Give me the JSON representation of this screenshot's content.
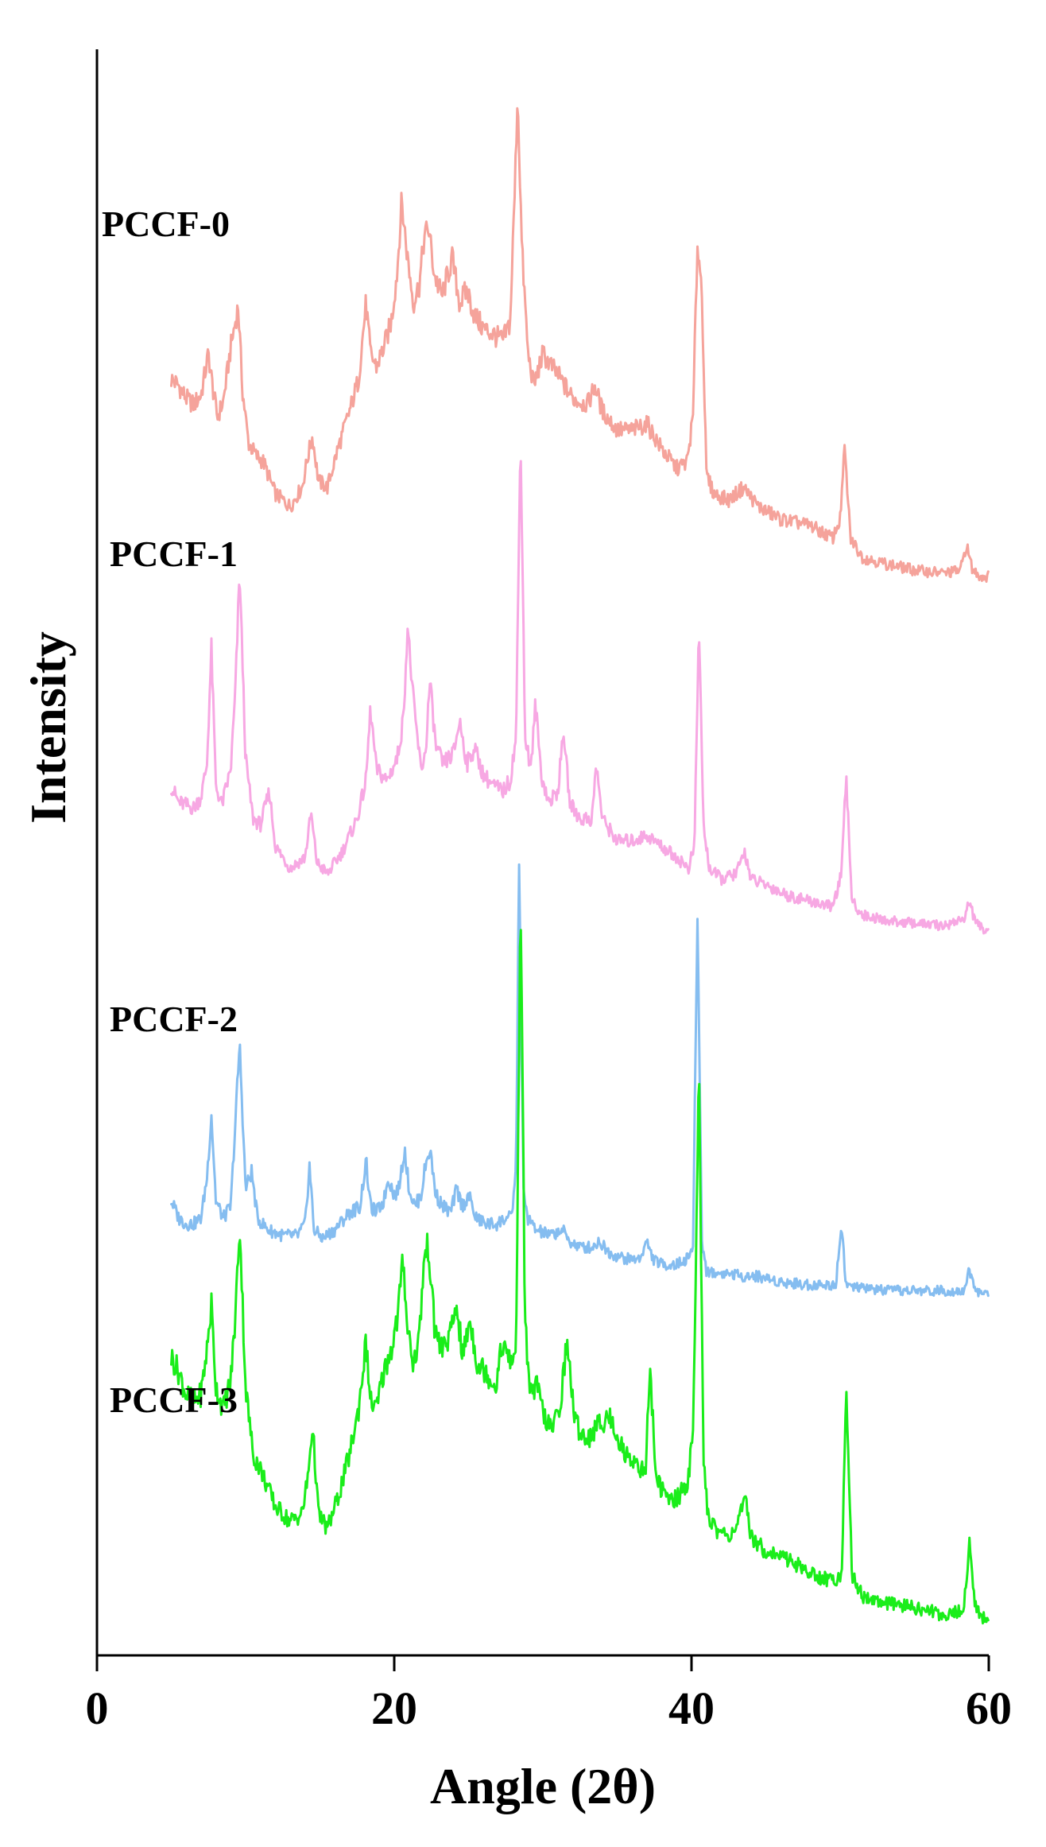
{
  "chart_data": {
    "type": "line",
    "title": "",
    "xlabel": "Angle (2θ)",
    "ylabel": "Intensity",
    "xlim": [
      0,
      60
    ],
    "xticks": [
      "0",
      "20",
      "40",
      "60"
    ],
    "y_ticks_shown": false,
    "grid": false,
    "legend": "inline labels, left",
    "series": [
      {
        "name": "PCCF-0",
        "color": "#f5a39b",
        "x": [
          5,
          5.5,
          6,
          6.5,
          7,
          7.5,
          7.8,
          8.1,
          8.5,
          9,
          9.5,
          9.8,
          10.2,
          10.7,
          11.2,
          12,
          13,
          13.8,
          14.2,
          14.5,
          14.9,
          15.5,
          16.2,
          17,
          17.6,
          18.1,
          18.4,
          18.8,
          19.3,
          19.8,
          20.2,
          20.5,
          20.9,
          21.3,
          21.7,
          22,
          22.3,
          22.7,
          23.2,
          23.9,
          24.4,
          24.9,
          25.4,
          26,
          26.7,
          27.3,
          27.8,
          28.1,
          28.3,
          28.6,
          29,
          29.4,
          30,
          30.6,
          31.2,
          32,
          33,
          33.5,
          34,
          35,
          36,
          37,
          38,
          39,
          39.7,
          40.1,
          40.4,
          40.7,
          41,
          41.5,
          42.5,
          43.5,
          44.5,
          46,
          48,
          49.5,
          50,
          50.3,
          50.7,
          51.5,
          53,
          55,
          57,
          58.1,
          58.5,
          58.9,
          59.5,
          60
        ],
        "y": [
          0.62,
          0.6,
          0.56,
          0.54,
          0.57,
          0.7,
          0.59,
          0.5,
          0.55,
          0.72,
          0.85,
          0.58,
          0.42,
          0.38,
          0.36,
          0.26,
          0.22,
          0.28,
          0.38,
          0.44,
          0.3,
          0.28,
          0.4,
          0.52,
          0.62,
          0.86,
          0.7,
          0.66,
          0.72,
          0.8,
          0.96,
          1.18,
          1.0,
          0.86,
          0.92,
          1.06,
          1.1,
          0.95,
          0.88,
          1.0,
          0.86,
          0.9,
          0.82,
          0.78,
          0.76,
          0.74,
          0.8,
          1.2,
          1.52,
          1.02,
          0.7,
          0.6,
          0.7,
          0.66,
          0.62,
          0.56,
          0.54,
          0.6,
          0.52,
          0.46,
          0.46,
          0.48,
          0.4,
          0.34,
          0.36,
          0.5,
          1.05,
          0.9,
          0.32,
          0.26,
          0.24,
          0.28,
          0.22,
          0.18,
          0.16,
          0.12,
          0.18,
          0.4,
          0.12,
          0.06,
          0.04,
          0.02,
          0.01,
          0.02,
          0.1,
          0.02,
          0.0,
          0.0
        ]
      },
      {
        "name": "PCCF-1",
        "color": "#f7a8e3",
        "x": [
          5,
          5.5,
          6,
          6.5,
          7,
          7.4,
          7.7,
          8,
          8.4,
          9,
          9.3,
          9.6,
          10,
          10.5,
          11,
          11.6,
          12,
          13,
          14,
          14.4,
          14.8,
          15.5,
          16.5,
          17.5,
          18.1,
          18.4,
          18.8,
          19.5,
          20.2,
          20.6,
          20.9,
          21.3,
          21.8,
          22.1,
          22.4,
          22.8,
          23.3,
          24,
          24.4,
          24.9,
          25.4,
          26,
          26.7,
          27.3,
          27.8,
          28.2,
          28.5,
          28.8,
          29.2,
          29.5,
          29.9,
          30.4,
          31,
          31.4,
          31.8,
          32.5,
          33.3,
          33.6,
          34,
          35,
          36,
          37,
          38,
          39,
          39.8,
          40.2,
          40.5,
          40.8,
          41.2,
          42,
          43,
          43.6,
          44,
          45,
          46.5,
          48,
          49.5,
          50.1,
          50.4,
          50.8,
          51.5,
          53,
          55,
          57,
          58.4,
          58.7,
          59.1,
          59.6,
          60
        ],
        "y": [
          0.52,
          0.46,
          0.45,
          0.44,
          0.48,
          0.6,
          1.02,
          0.52,
          0.45,
          0.58,
          0.85,
          1.3,
          0.62,
          0.4,
          0.38,
          0.5,
          0.3,
          0.22,
          0.26,
          0.42,
          0.24,
          0.2,
          0.28,
          0.4,
          0.54,
          0.8,
          0.58,
          0.54,
          0.62,
          0.76,
          1.1,
          0.82,
          0.58,
          0.64,
          0.9,
          0.66,
          0.6,
          0.64,
          0.76,
          0.6,
          0.66,
          0.56,
          0.52,
          0.5,
          0.54,
          0.7,
          1.82,
          0.7,
          0.58,
          0.82,
          0.56,
          0.46,
          0.5,
          0.72,
          0.46,
          0.4,
          0.4,
          0.6,
          0.4,
          0.32,
          0.32,
          0.34,
          0.3,
          0.26,
          0.22,
          0.3,
          1.12,
          0.38,
          0.22,
          0.18,
          0.2,
          0.28,
          0.18,
          0.16,
          0.12,
          0.1,
          0.08,
          0.2,
          0.56,
          0.1,
          0.05,
          0.03,
          0.02,
          0.01,
          0.04,
          0.1,
          0.02,
          0.0,
          0.0
        ]
      },
      {
        "name": "PCCF-2",
        "color": "#85bdf0",
        "x": [
          5,
          5.5,
          6,
          6.5,
          7,
          7.4,
          7.7,
          8,
          8.5,
          9,
          9.3,
          9.6,
          10,
          10.4,
          10.8,
          11.5,
          12.5,
          13.5,
          14,
          14.3,
          14.6,
          15.2,
          16,
          17,
          17.7,
          18.1,
          18.4,
          18.8,
          19.3,
          19.6,
          20,
          20.3,
          20.7,
          21,
          21.4,
          21.8,
          22.1,
          22.4,
          22.8,
          23.3,
          23.8,
          24.2,
          24.6,
          25,
          25.5,
          26.2,
          26.9,
          27.5,
          27.9,
          28.2,
          28.4,
          28.7,
          29,
          29.5,
          30.5,
          31.3,
          31.8,
          32.5,
          33.3,
          33.8,
          34.5,
          35.5,
          36.5,
          37,
          37.4,
          38,
          39,
          39.7,
          40.1,
          40.4,
          40.7,
          41,
          41.5,
          42.5,
          43.5,
          44.5,
          46,
          48,
          49.7,
          50.1,
          50.4,
          50.8,
          51.5,
          53,
          55,
          57,
          58.3,
          58.7,
          59.1,
          59.6,
          60
        ],
        "y": [
          0.32,
          0.26,
          0.24,
          0.24,
          0.26,
          0.4,
          0.62,
          0.32,
          0.26,
          0.3,
          0.58,
          0.86,
          0.36,
          0.42,
          0.26,
          0.22,
          0.2,
          0.2,
          0.24,
          0.44,
          0.22,
          0.19,
          0.22,
          0.28,
          0.3,
          0.46,
          0.3,
          0.28,
          0.32,
          0.4,
          0.34,
          0.36,
          0.5,
          0.36,
          0.3,
          0.34,
          0.44,
          0.5,
          0.34,
          0.3,
          0.28,
          0.36,
          0.3,
          0.34,
          0.26,
          0.24,
          0.24,
          0.26,
          0.26,
          0.44,
          1.5,
          0.34,
          0.26,
          0.22,
          0.2,
          0.22,
          0.18,
          0.16,
          0.16,
          0.18,
          0.14,
          0.12,
          0.12,
          0.18,
          0.12,
          0.1,
          0.1,
          0.12,
          0.16,
          1.32,
          0.18,
          0.08,
          0.07,
          0.07,
          0.06,
          0.06,
          0.04,
          0.03,
          0.03,
          0.24,
          0.03,
          0.02,
          0.02,
          0.01,
          0.01,
          0.01,
          0.01,
          0.08,
          0.01,
          0.0,
          0.0
        ]
      },
      {
        "name": "PCCF-3",
        "color": "#1aed1a",
        "x": [
          5,
          5.5,
          6,
          6.5,
          7,
          7.4,
          7.7,
          8,
          8.5,
          9,
          9.3,
          9.6,
          10,
          10.5,
          11,
          12,
          13,
          13.8,
          14.2,
          14.5,
          14.9,
          15.5,
          16.2,
          17,
          17.6,
          18.1,
          18.4,
          18.8,
          19.3,
          19.8,
          20.2,
          20.6,
          20.9,
          21.3,
          21.7,
          22,
          22.3,
          22.7,
          23.2,
          23.8,
          24.2,
          24.6,
          25.1,
          25.6,
          26.2,
          26.8,
          27.3,
          27.8,
          28.2,
          28.5,
          28.8,
          29.2,
          29.6,
          30.1,
          30.6,
          31.2,
          31.6,
          32.2,
          33,
          33.8,
          34.5,
          35.5,
          36.3,
          36.9,
          37.2,
          37.6,
          38.3,
          39,
          39.7,
          40.1,
          40.5,
          40.8,
          41.1,
          41.6,
          42.5,
          43.2,
          43.6,
          44,
          45,
          46.5,
          48,
          49.5,
          50.1,
          50.4,
          50.8,
          51.5,
          53,
          55,
          57,
          58.3,
          58.7,
          59.1,
          59.6,
          60
        ],
        "y": [
          0.72,
          0.68,
          0.62,
          0.6,
          0.62,
          0.74,
          0.86,
          0.64,
          0.58,
          0.66,
          0.82,
          1.08,
          0.64,
          0.46,
          0.42,
          0.32,
          0.28,
          0.3,
          0.4,
          0.54,
          0.3,
          0.26,
          0.34,
          0.46,
          0.58,
          0.76,
          0.6,
          0.58,
          0.68,
          0.74,
          0.82,
          0.98,
          0.8,
          0.7,
          0.78,
          0.98,
          1.02,
          0.8,
          0.74,
          0.78,
          0.86,
          0.72,
          0.82,
          0.7,
          0.68,
          0.64,
          0.76,
          0.7,
          0.74,
          1.96,
          0.8,
          0.62,
          0.64,
          0.56,
          0.52,
          0.6,
          0.76,
          0.54,
          0.5,
          0.54,
          0.56,
          0.46,
          0.44,
          0.4,
          0.7,
          0.4,
          0.34,
          0.34,
          0.38,
          0.5,
          1.5,
          0.44,
          0.3,
          0.26,
          0.24,
          0.28,
          0.34,
          0.24,
          0.2,
          0.18,
          0.14,
          0.12,
          0.14,
          0.62,
          0.14,
          0.08,
          0.06,
          0.05,
          0.03,
          0.04,
          0.22,
          0.05,
          0.02,
          0.02
        ]
      }
    ]
  }
}
